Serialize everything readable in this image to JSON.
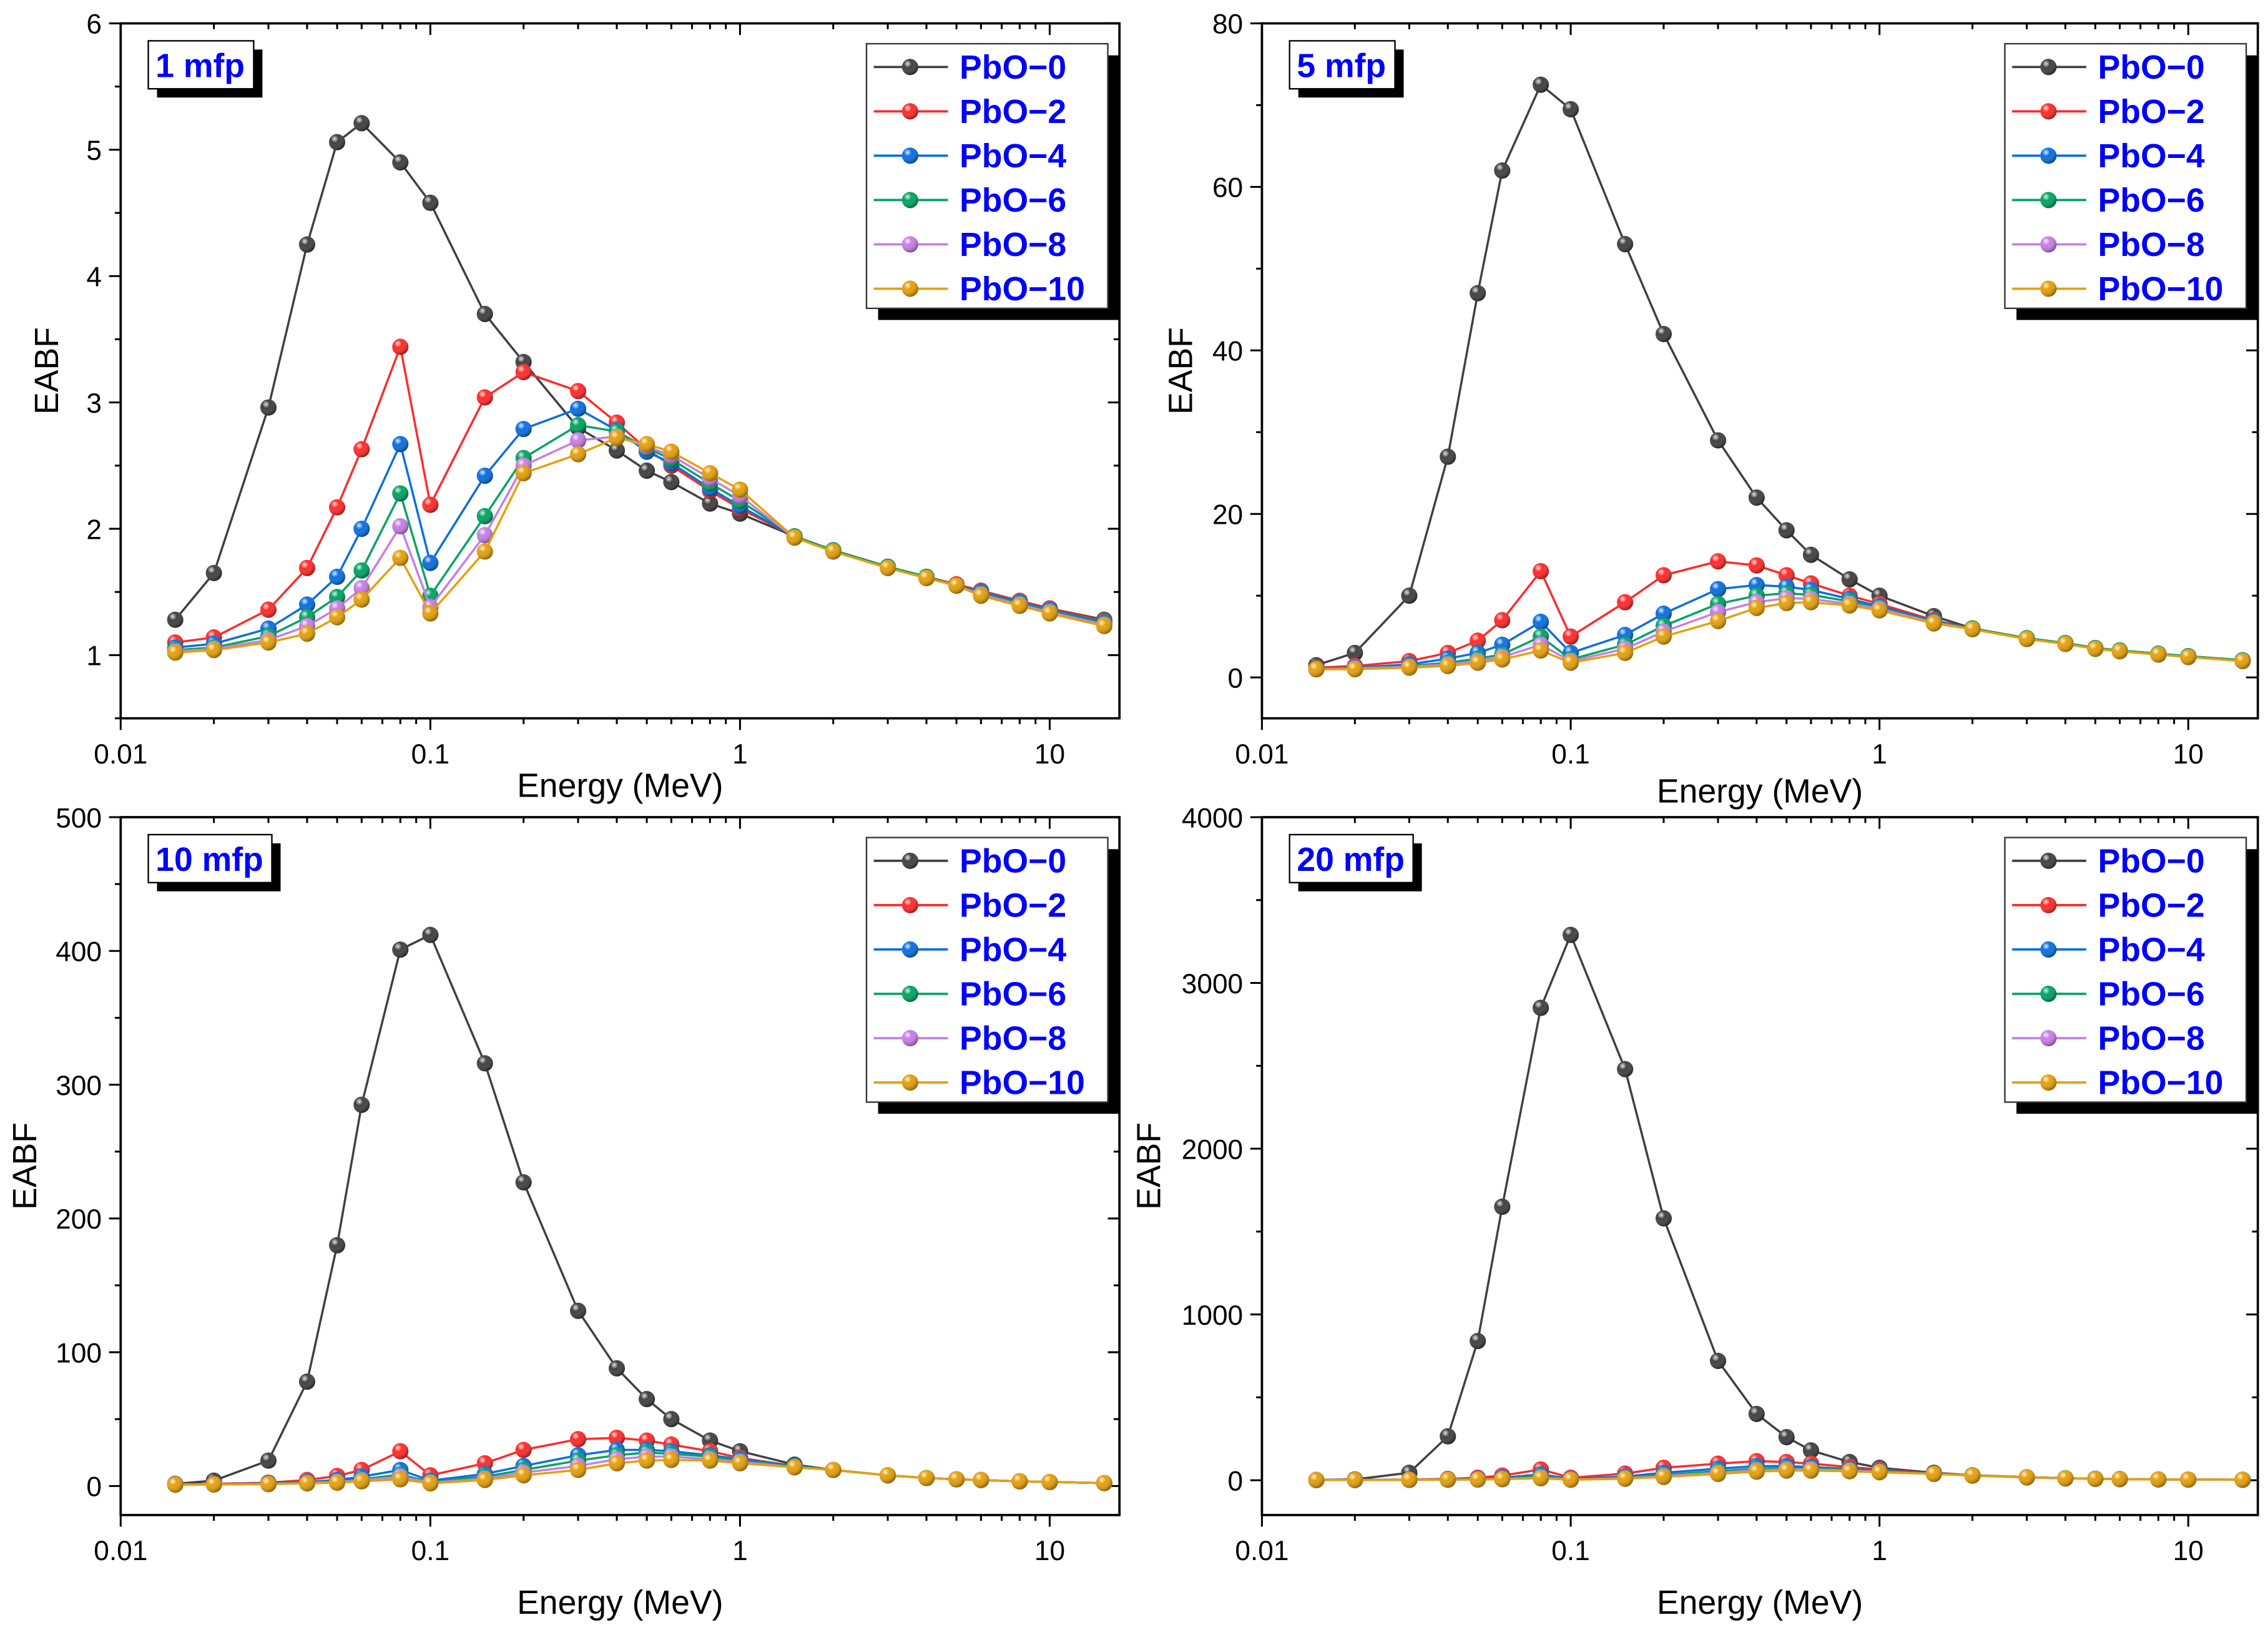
{
  "energies": [
    0.015,
    0.02,
    0.03,
    0.04,
    0.05,
    0.06,
    0.08,
    0.1,
    0.15,
    0.2,
    0.3,
    0.4,
    0.5,
    0.6,
    0.8,
    1,
    1.5,
    2,
    3,
    4,
    5,
    6,
    8,
    10,
    15
  ],
  "series_names": [
    "PbO−0",
    "PbO−2",
    "PbO−4",
    "PbO−6",
    "PbO−8",
    "PbO−10"
  ],
  "series_colors": [
    "#404040",
    "#ff2a2a",
    "#0a6ee0",
    "#00a463",
    "#c77ee6",
    "#e5a00a"
  ],
  "chart_data": [
    {
      "type": "line",
      "title": "1 mfp",
      "xlabel": "Energy (MeV)",
      "ylabel": "EABF",
      "xscale": "log",
      "xlim": [
        0.01,
        16.8
      ],
      "ylim": [
        0.5,
        6
      ],
      "xticks": [
        "0.01",
        "0.1",
        "1",
        "10"
      ],
      "xtick_values": [
        0.01,
        0.1,
        1,
        10
      ],
      "yticks": [
        "1",
        "2",
        "3",
        "4",
        "5",
        "6"
      ],
      "ytick_values": [
        1,
        2,
        3,
        4,
        5,
        6
      ],
      "legend": "top-right",
      "series": [
        {
          "name": "PbO−0",
          "values": [
            1.28,
            1.65,
            2.96,
            4.25,
            5.06,
            5.21,
            4.9,
            4.58,
            3.7,
            3.32,
            2.8,
            2.62,
            2.46,
            2.37,
            2.2,
            2.12,
            1.94,
            1.83,
            1.7,
            1.62,
            1.56,
            1.51,
            1.43,
            1.37,
            1.28
          ]
        },
        {
          "name": "PbO−2",
          "values": [
            1.1,
            1.14,
            1.36,
            1.69,
            2.17,
            2.63,
            3.44,
            2.19,
            3.04,
            3.24,
            3.09,
            2.84,
            2.63,
            2.5,
            2.3,
            2.16,
            1.94,
            1.83,
            1.7,
            1.62,
            1.56,
            1.51,
            1.43,
            1.37,
            1.27
          ]
        },
        {
          "name": "PbO−4",
          "values": [
            1.06,
            1.09,
            1.21,
            1.4,
            1.62,
            2.0,
            2.67,
            1.73,
            2.42,
            2.79,
            2.95,
            2.78,
            2.61,
            2.52,
            2.32,
            2.18,
            1.94,
            1.83,
            1.7,
            1.62,
            1.55,
            1.5,
            1.42,
            1.36,
            1.26
          ]
        },
        {
          "name": "PbO−6",
          "values": [
            1.04,
            1.06,
            1.15,
            1.3,
            1.46,
            1.67,
            2.28,
            1.47,
            2.1,
            2.56,
            2.82,
            2.77,
            2.64,
            2.55,
            2.36,
            2.22,
            1.94,
            1.83,
            1.7,
            1.62,
            1.55,
            1.49,
            1.41,
            1.35,
            1.25
          ]
        },
        {
          "name": "PbO−8",
          "values": [
            1.03,
            1.05,
            1.12,
            1.23,
            1.37,
            1.53,
            2.02,
            1.38,
            1.95,
            2.5,
            2.7,
            2.73,
            2.65,
            2.58,
            2.4,
            2.26,
            1.93,
            1.82,
            1.69,
            1.61,
            1.55,
            1.48,
            1.4,
            1.34,
            1.24
          ]
        },
        {
          "name": "PbO−10",
          "values": [
            1.02,
            1.04,
            1.1,
            1.17,
            1.3,
            1.44,
            1.77,
            1.33,
            1.82,
            2.44,
            2.59,
            2.72,
            2.67,
            2.61,
            2.44,
            2.31,
            1.93,
            1.82,
            1.69,
            1.61,
            1.55,
            1.47,
            1.39,
            1.33,
            1.23
          ]
        }
      ]
    },
    {
      "type": "line",
      "title": "5 mfp",
      "xlabel": "Energy (MeV)",
      "ylabel": "EABF",
      "xscale": "log",
      "xlim": [
        0.01,
        16.8
      ],
      "ylim": [
        -5,
        80
      ],
      "xticks": [
        "0.01",
        "0.1",
        "1",
        "10"
      ],
      "xtick_values": [
        0.01,
        0.1,
        1,
        10
      ],
      "yticks": [
        "0",
        "20",
        "40",
        "60",
        "80"
      ],
      "ytick_values": [
        0,
        20,
        40,
        60,
        80
      ],
      "legend": "top-right",
      "series": [
        {
          "name": "PbO−0",
          "values": [
            1.5,
            3,
            10,
            27,
            47,
            62,
            72.5,
            69.5,
            53,
            42,
            29,
            22,
            18,
            15,
            12,
            10,
            7.5,
            6,
            4.8,
            4.2,
            3.6,
            3.3,
            2.9,
            2.6,
            2.1
          ]
        },
        {
          "name": "PbO−2",
          "values": [
            1.2,
            1.4,
            2,
            3,
            4.5,
            7,
            13,
            5,
            9.2,
            12.5,
            14.2,
            13.7,
            12.5,
            11.5,
            10,
            9,
            7,
            6,
            4.8,
            4.2,
            3.6,
            3.3,
            2.9,
            2.6,
            2.1
          ]
        },
        {
          "name": "PbO−4",
          "values": [
            1.1,
            1.2,
            1.6,
            2.3,
            3,
            4,
            6.8,
            3,
            5.2,
            7.8,
            10.8,
            11.3,
            11.1,
            10.7,
            9.6,
            8.7,
            6.9,
            6,
            4.8,
            4.2,
            3.6,
            3.3,
            2.9,
            2.6,
            2.1
          ]
        },
        {
          "name": "PbO−6",
          "values": [
            1.1,
            1.1,
            1.4,
            1.8,
            2.3,
            2.8,
            5,
            2.2,
            4,
            6.3,
            9,
            10,
            10.3,
            10.1,
            9.3,
            8.5,
            6.8,
            6,
            4.8,
            4.2,
            3.6,
            3.3,
            2.9,
            2.6,
            2.1
          ]
        },
        {
          "name": "PbO−8",
          "values": [
            1,
            1.1,
            1.3,
            1.6,
            2,
            2.5,
            4,
            2,
            3.5,
            5.6,
            8,
            9.2,
            9.7,
            9.6,
            9,
            8.4,
            6.7,
            5.9,
            4.7,
            4.1,
            3.5,
            3.2,
            2.8,
            2.5,
            2
          ]
        },
        {
          "name": "PbO−10",
          "values": [
            1,
            1,
            1.2,
            1.4,
            1.8,
            2.2,
            3.3,
            1.8,
            3,
            5,
            6.9,
            8.5,
            9.1,
            9.2,
            8.8,
            8.2,
            6.6,
            5.9,
            4.7,
            4.1,
            3.5,
            3.2,
            2.8,
            2.5,
            2
          ]
        }
      ]
    },
    {
      "type": "line",
      "title": "10 mfp",
      "xlabel": "Energy (MeV)",
      "ylabel": "EABF",
      "xscale": "log",
      "xlim": [
        0.01,
        16.8
      ],
      "ylim": [
        -21.7,
        500
      ],
      "xticks": [
        "0.01",
        "0.1",
        "1",
        "10"
      ],
      "xtick_values": [
        0.01,
        0.1,
        1,
        10
      ],
      "yticks": [
        "0",
        "100",
        "200",
        "300",
        "400",
        "500"
      ],
      "ytick_values": [
        0,
        100,
        200,
        300,
        400,
        500
      ],
      "legend": "top-right",
      "series": [
        {
          "name": "PbO−0",
          "values": [
            1.6,
            4,
            19,
            78,
            180,
            285,
            401,
            412,
            316,
            227,
            131,
            88,
            65,
            50,
            34,
            26,
            16,
            12,
            8,
            6,
            5,
            4.5,
            3.5,
            3,
            2.2
          ]
        },
        {
          "name": "PbO−2",
          "values": [
            1.3,
            1.6,
            2.5,
            4.5,
            7.5,
            12,
            26,
            8,
            17,
            27,
            35,
            36,
            34,
            31,
            26,
            21,
            15,
            12,
            8,
            6,
            5,
            4.5,
            3.5,
            3,
            2.2
          ]
        },
        {
          "name": "PbO−4",
          "values": [
            1.2,
            1.4,
            2,
            3,
            4.5,
            7,
            12,
            4,
            9,
            15,
            23,
            27,
            27,
            26,
            23,
            20,
            15,
            12,
            8,
            6,
            5,
            4.5,
            3.5,
            3,
            2.2
          ]
        },
        {
          "name": "PbO−6",
          "values": [
            1.1,
            1.3,
            1.7,
            2.5,
            3.5,
            5,
            8.5,
            3,
            7,
            12,
            19,
            23,
            25,
            24,
            22,
            19,
            14.5,
            12,
            8,
            6,
            5,
            4.5,
            3.5,
            3,
            2.2
          ]
        },
        {
          "name": "PbO−8",
          "values": [
            1.1,
            1.2,
            1.5,
            2.2,
            3,
            4.2,
            7,
            2.5,
            5.5,
            10,
            15,
            20,
            22,
            22,
            20,
            18,
            14,
            12,
            8,
            6,
            5,
            4.5,
            3.5,
            3,
            2.2
          ]
        },
        {
          "name": "PbO−10",
          "values": [
            1,
            1.1,
            1.4,
            2,
            2.5,
            3.5,
            5,
            2,
            4.5,
            8,
            12,
            17,
            19,
            19.5,
            19,
            17,
            14,
            12,
            8,
            6,
            5,
            4.5,
            3.5,
            3,
            2.2
          ]
        }
      ]
    },
    {
      "type": "line",
      "title": "20 mfp",
      "xlabel": "Energy (MeV)",
      "ylabel": "EABF",
      "xscale": "log",
      "xlim": [
        0.01,
        16.8
      ],
      "ylim": [
        -210,
        4000
      ],
      "xticks": [
        "0.01",
        "0.1",
        "1",
        "10"
      ],
      "xtick_values": [
        0.01,
        0.1,
        1,
        10
      ],
      "yticks": [
        "0",
        "1000",
        "2000",
        "3000",
        "4000"
      ],
      "ytick_values": [
        0,
        1000,
        2000,
        3000,
        4000
      ],
      "legend": "top-right",
      "series": [
        {
          "name": "PbO−0",
          "values": [
            1.8,
            5,
            45,
            265,
            840,
            1650,
            2850,
            3290,
            2480,
            1580,
            720,
            400,
            260,
            180,
            110,
            75,
            45,
            30,
            18,
            12,
            9,
            7,
            5,
            4,
            3
          ]
        },
        {
          "name": "PbO−2",
          "values": [
            1.4,
            2,
            4,
            8,
            15,
            28,
            65,
            15,
            40,
            75,
            100,
            115,
            110,
            100,
            80,
            65,
            40,
            30,
            18,
            12,
            9,
            7,
            5,
            4,
            3
          ]
        },
        {
          "name": "PbO−4",
          "values": [
            1.3,
            1.7,
            3,
            5,
            9,
            15,
            35,
            8,
            22,
            45,
            70,
            85,
            85,
            80,
            68,
            58,
            40,
            29,
            18,
            12,
            9,
            7,
            5,
            4,
            3
          ]
        },
        {
          "name": "PbO−6",
          "values": [
            1.2,
            1.5,
            2.5,
            4,
            6,
            10,
            22,
            5,
            15,
            32,
            55,
            70,
            72,
            70,
            62,
            55,
            39,
            29,
            17,
            12,
            9,
            7,
            5,
            4,
            3
          ]
        },
        {
          "name": "PbO−8",
          "values": [
            1.1,
            1.4,
            2.2,
            3.3,
            5,
            8,
            16,
            4,
            11,
            25,
            45,
            60,
            65,
            65,
            58,
            50,
            38,
            28,
            17,
            11,
            8.5,
            6.8,
            4.8,
            3.8,
            2.8
          ]
        },
        {
          "name": "PbO−10",
          "values": [
            1,
            1.3,
            2,
            3,
            4,
            6,
            12,
            3,
            9,
            20,
            38,
            52,
            58,
            58,
            54,
            48,
            38,
            28,
            17,
            11,
            8.5,
            6.8,
            4.8,
            3.8,
            2.8
          ]
        }
      ]
    }
  ]
}
